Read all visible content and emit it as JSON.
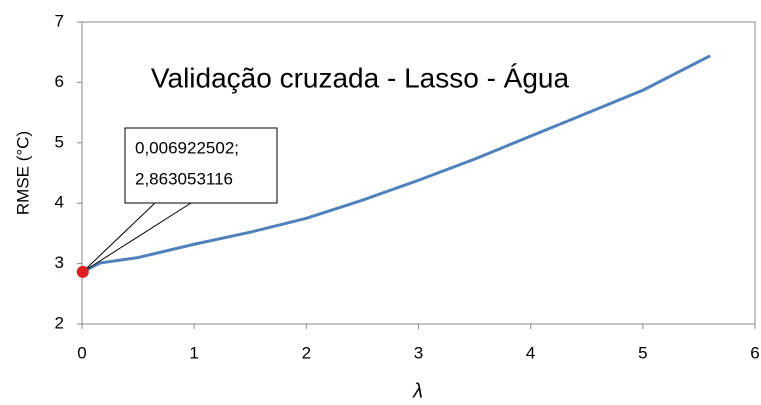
{
  "chart_data": {
    "type": "line",
    "title": "Validação cruzada - Lasso - Água",
    "x_label": "λ",
    "y_label": "RMSE (°C)",
    "x": [
      0.006922502,
      0.16,
      0.5,
      1,
      1.5,
      2,
      2.5,
      3,
      3.5,
      4,
      4.5,
      5,
      5.6
    ],
    "series": [
      {
        "color": "#4f81bd",
        "values": [
          2.863053116,
          3.01,
          3.1,
          3.32,
          3.52,
          3.75,
          4.05,
          4.38,
          4.73,
          5.11,
          5.49,
          5.87,
          6.44
        ]
      }
    ],
    "highlight": {
      "index": 0,
      "color": "#e02020",
      "label": [
        "0,006922502;",
        "2,863053116"
      ]
    },
    "xlim": [
      0,
      6
    ],
    "xticks": [
      0,
      1,
      2,
      3,
      4,
      5,
      6
    ],
    "ylim": [
      2,
      7
    ],
    "yticks": [
      2,
      3,
      4,
      5,
      6,
      7
    ],
    "grid": false
  }
}
